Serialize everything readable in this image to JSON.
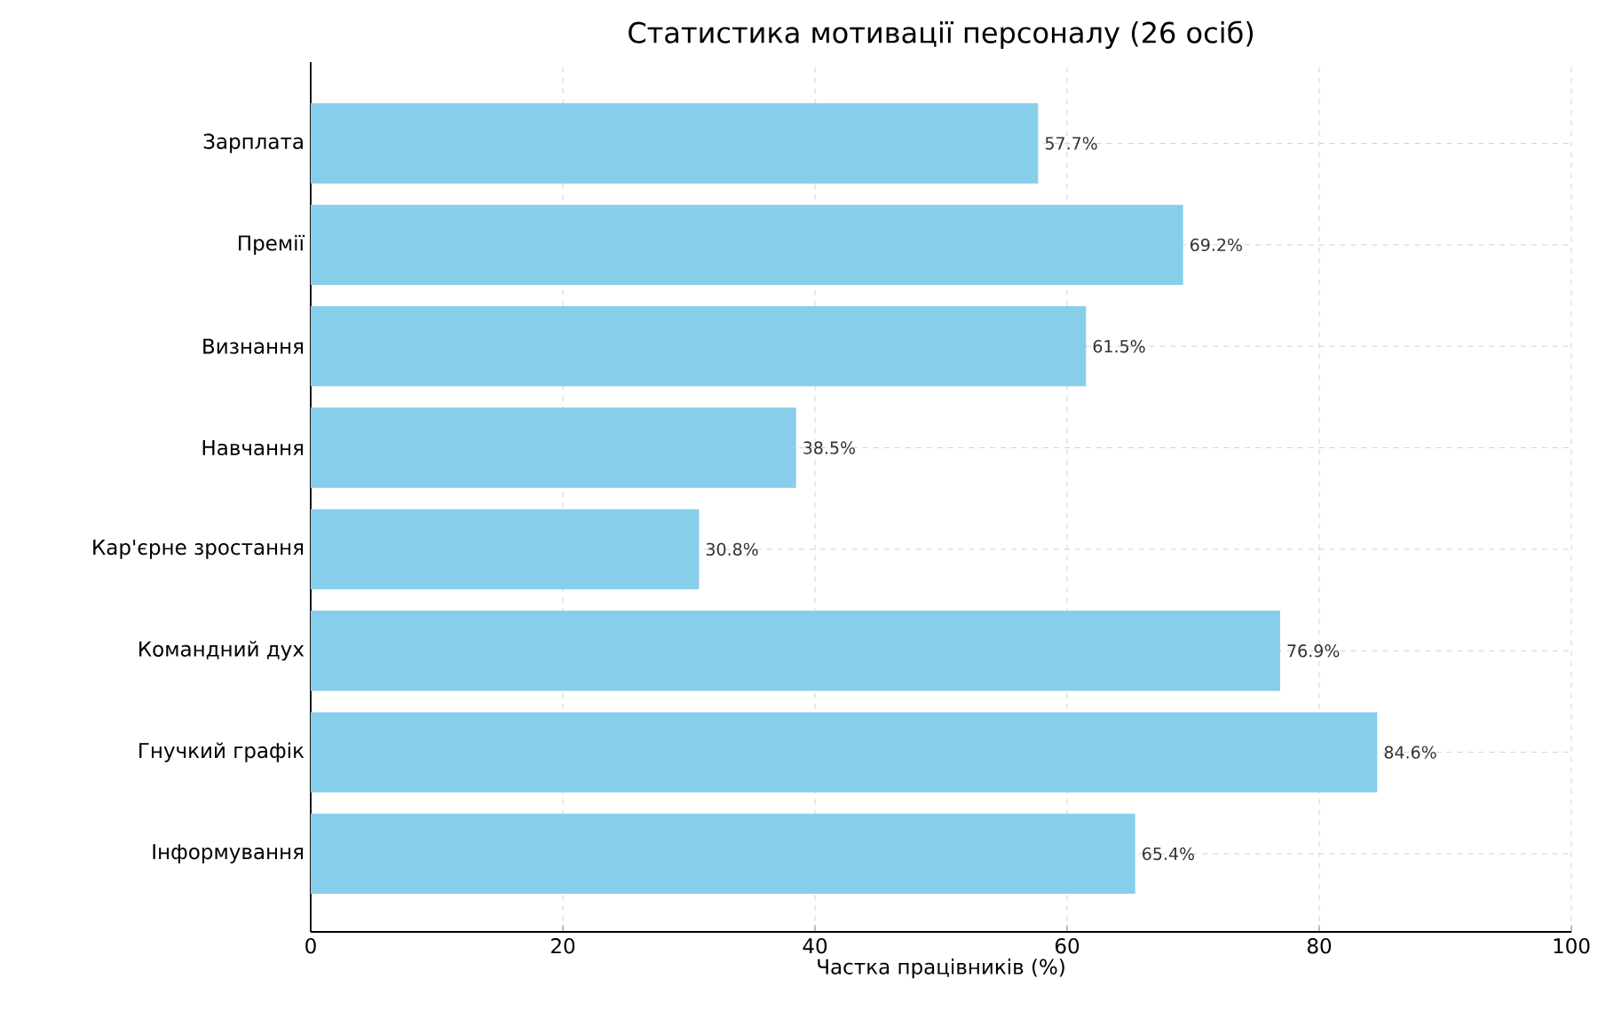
{
  "chart_data": {
    "type": "bar",
    "orientation": "horizontal",
    "title": "Статистика мотивації персоналу (26 осіб)",
    "xlabel": "Частка працівників (%)",
    "categories": [
      "Зарплата",
      "Премії",
      "Визнання",
      "Навчання",
      "Кар'єрне зростання",
      "Командний дух",
      "Гнучкий графік",
      "Інформування"
    ],
    "values": [
      57.7,
      69.2,
      61.5,
      38.5,
      30.8,
      76.9,
      84.6,
      65.4
    ],
    "value_labels": [
      "57.7%",
      "69.2%",
      "61.5%",
      "38.5%",
      "30.8%",
      "76.9%",
      "84.6%",
      "65.4%"
    ],
    "color": "#87ceeb",
    "xlim": [
      0,
      100
    ],
    "xticks": [
      0,
      20,
      40,
      60,
      80,
      100
    ],
    "grid": true
  }
}
